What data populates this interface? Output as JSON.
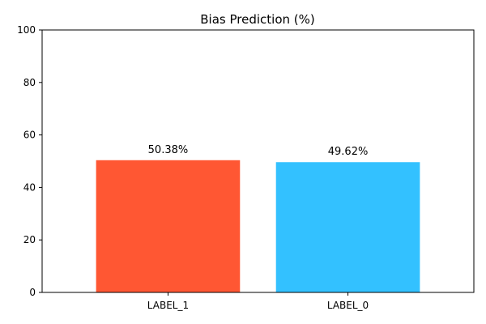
{
  "chart_data": {
    "type": "bar",
    "title": "Bias Prediction (%)",
    "xlabel": "",
    "ylabel": "",
    "categories": [
      "LABEL_1",
      "LABEL_0"
    ],
    "values": [
      50.38,
      49.62
    ],
    "data_labels": [
      "50.38%",
      "49.62%"
    ],
    "colors": [
      "#ff5733",
      "#33c1ff"
    ],
    "ylim": [
      0,
      100
    ],
    "yticks": [
      0,
      20,
      40,
      60,
      80,
      100
    ],
    "ytick_labels": [
      "0",
      "20",
      "40",
      "60",
      "80",
      "100"
    ],
    "grid": false,
    "legend": "none"
  }
}
